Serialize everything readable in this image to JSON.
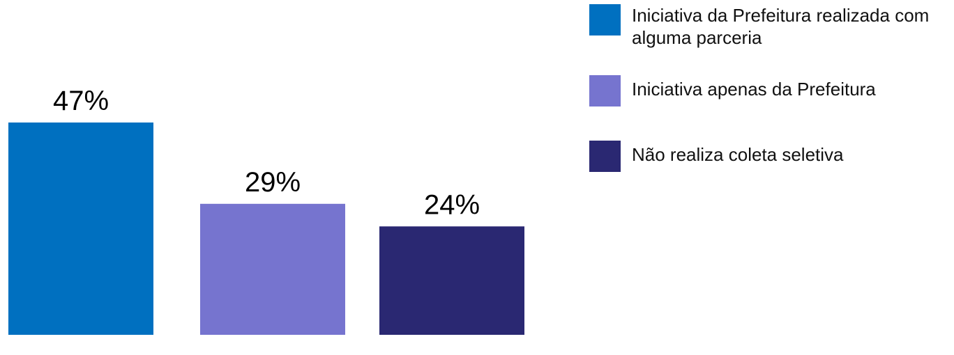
{
  "chart_data": {
    "type": "bar",
    "categories": [
      "Iniciativa da Prefeitura realizada com alguma parceria",
      "Iniciativa apenas da Prefeitura",
      "Não realiza coleta seletiva"
    ],
    "values": [
      47,
      29,
      24
    ],
    "value_labels": [
      "47%",
      "29%",
      "24%"
    ],
    "colors": [
      "#0070C0",
      "#7674CF",
      "#2A2872"
    ],
    "unit": "%",
    "ylim": [
      0,
      47
    ],
    "grid": false,
    "legend_position": "top-right"
  },
  "legend": {
    "items": [
      {
        "text": "Iniciativa da Prefeitura realizada com alguma parceria",
        "color": "#0070C0"
      },
      {
        "text": "Iniciativa apenas da Prefeitura",
        "color": "#7674CF"
      },
      {
        "text": "Não realiza coleta seletiva",
        "color": "#2A2872"
      }
    ]
  }
}
